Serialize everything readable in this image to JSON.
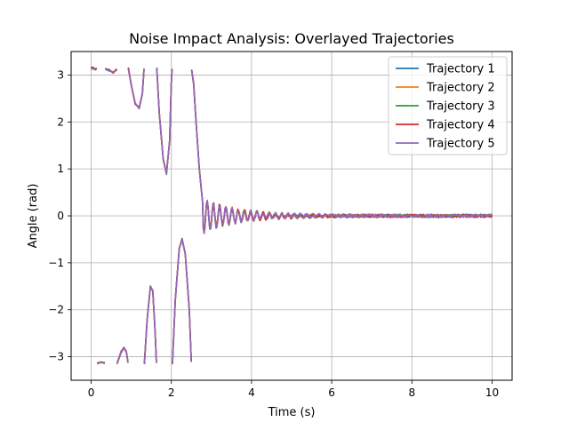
{
  "chart_data": {
    "type": "line",
    "title": "Noise Impact Analysis: Overlayed Trajectories",
    "xlabel": "Time (s)",
    "ylabel": "Angle (rad)",
    "xlim": [
      -0.5,
      10.5
    ],
    "ylim": [
      -3.5,
      3.5
    ],
    "xticks": [
      0,
      2,
      4,
      6,
      8,
      10
    ],
    "yticks": [
      -3,
      -2,
      -1,
      0,
      1,
      2,
      3
    ],
    "grid": true,
    "legend_position": "upper right",
    "series": [
      {
        "name": "Trajectory 1",
        "color": "#1f77b4",
        "seed": 11
      },
      {
        "name": "Trajectory 2",
        "color": "#ff7f0e",
        "seed": 23
      },
      {
        "name": "Trajectory 3",
        "color": "#2ca02c",
        "seed": 37
      },
      {
        "name": "Trajectory 4",
        "color": "#d62728",
        "seed": 41
      },
      {
        "name": "Trajectory 5",
        "color": "#9467bd",
        "seed": 53
      }
    ],
    "base_trajectory": [
      [
        0.0,
        3.14
      ],
      [
        0.05,
        3.15
      ],
      [
        0.1,
        3.13
      ],
      [
        0.14,
        3.14
      ],
      [
        0.15,
        -3.14
      ],
      [
        0.25,
        -3.1
      ],
      [
        0.34,
        -3.13
      ],
      [
        0.35,
        3.14
      ],
      [
        0.45,
        3.1
      ],
      [
        0.55,
        3.05
      ],
      [
        0.64,
        3.12
      ],
      [
        0.65,
        -3.14
      ],
      [
        0.75,
        -2.9
      ],
      [
        0.82,
        -2.8
      ],
      [
        0.88,
        -2.9
      ],
      [
        0.92,
        -3.12
      ],
      [
        0.93,
        3.14
      ],
      [
        1.0,
        2.8
      ],
      [
        1.1,
        2.4
      ],
      [
        1.2,
        2.3
      ],
      [
        1.28,
        2.6
      ],
      [
        1.32,
        3.12
      ],
      [
        1.33,
        -3.14
      ],
      [
        1.4,
        -2.2
      ],
      [
        1.48,
        -1.5
      ],
      [
        1.54,
        -1.6
      ],
      [
        1.6,
        -2.5
      ],
      [
        1.63,
        -3.12
      ],
      [
        1.64,
        3.14
      ],
      [
        1.7,
        2.2
      ],
      [
        1.8,
        1.2
      ],
      [
        1.88,
        0.9
      ],
      [
        1.96,
        1.6
      ],
      [
        2.0,
        2.8
      ],
      [
        2.02,
        3.12
      ],
      [
        2.03,
        -3.14
      ],
      [
        2.1,
        -1.8
      ],
      [
        2.2,
        -0.7
      ],
      [
        2.27,
        -0.5
      ],
      [
        2.35,
        -0.8
      ],
      [
        2.45,
        -2.0
      ],
      [
        2.5,
        -3.1
      ],
      [
        2.51,
        3.1
      ],
      [
        2.56,
        2.8
      ],
      [
        2.62,
        2.0
      ],
      [
        2.7,
        1.0
      ],
      [
        2.78,
        0.3
      ]
    ]
  }
}
